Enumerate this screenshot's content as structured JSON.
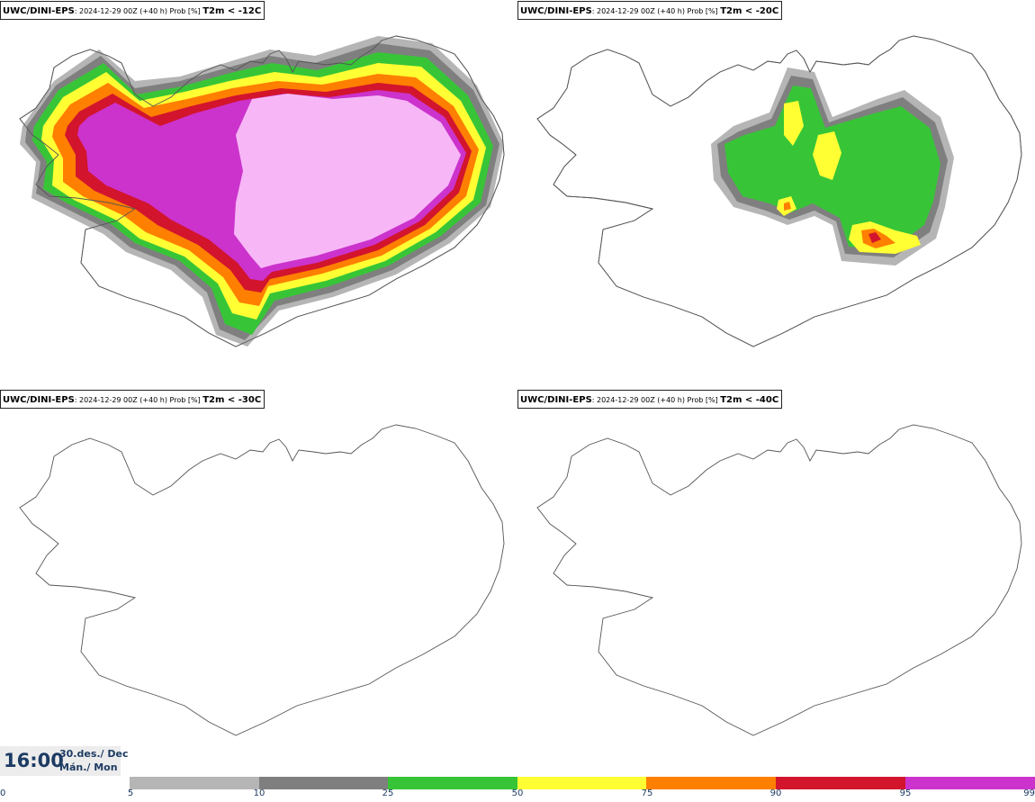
{
  "panels": [
    {
      "model": "UWC/DINI-EPS",
      "run_info": ": 2024-12-29 00Z (+40 h) Prob [%] ",
      "threshold": "T2m < -12C"
    },
    {
      "model": "UWC/DINI-EPS",
      "run_info": ": 2024-12-29 00Z (+40 h) Prob [%] ",
      "threshold": "T2m < -20C"
    },
    {
      "model": "UWC/DINI-EPS",
      "run_info": ": 2024-12-29 00Z (+40 h) Prob [%] ",
      "threshold": "T2m < -30C"
    },
    {
      "model": "UWC/DINI-EPS",
      "run_info": ": 2024-12-29 00Z (+40 h) Prob [%] ",
      "threshold": "T2m < -40C"
    }
  ],
  "valid_time": {
    "time": "16:00",
    "date": "30.des./ Dec",
    "weekday": "Mán./ Mon"
  },
  "legend": {
    "ticks": [
      "0",
      "5",
      "10",
      "25",
      "50",
      "75",
      "90",
      "95",
      "99"
    ],
    "colors": [
      "#ffffff",
      "#b5b5b5",
      "#7f7f7f",
      "#37c537",
      "#ffff33",
      "#ff7f00",
      "#d2142d",
      "#cc33cc",
      "#f7b7f7"
    ]
  },
  "colors": {
    "coast": "#555555",
    "gray_light": "#b5b5b5",
    "gray_dark": "#7f7f7f",
    "green": "#37c537",
    "yellow": "#ffff33",
    "orange": "#ff7f00",
    "red": "#d2142d",
    "magenta": "#cc33cc",
    "pink": "#f7b7f7",
    "label_text": "#1d3b63"
  }
}
